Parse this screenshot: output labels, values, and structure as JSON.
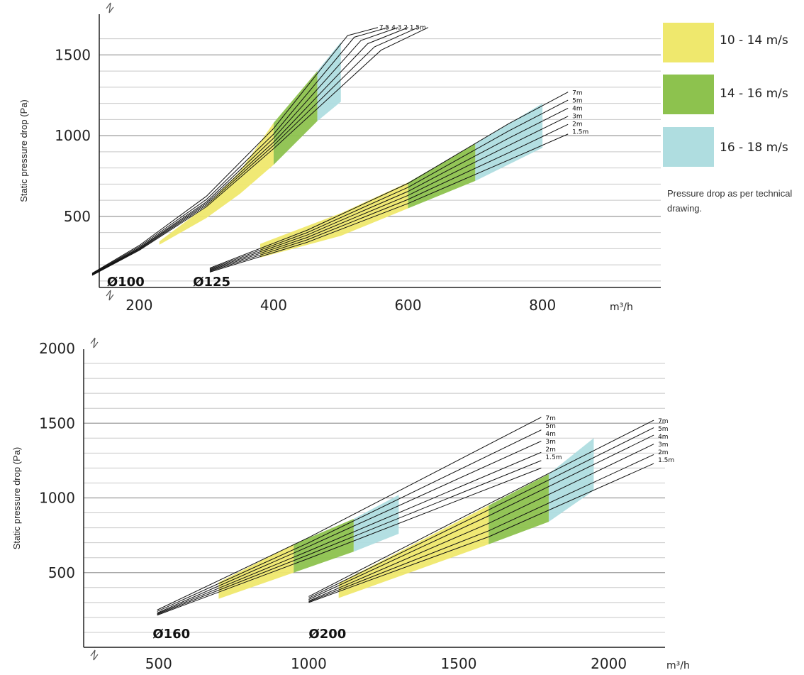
{
  "legend": {
    "items": [
      {
        "label": "10 - 14 m/s",
        "color": "#efe86d"
      },
      {
        "label": "14 - 16 m/s",
        "color": "#8dc24e"
      },
      {
        "label": "16 - 18 m/s",
        "color": "#afdde0"
      }
    ],
    "note": "Pressure drop as per technical drawing."
  },
  "chart_data": [
    {
      "type": "line",
      "ylabel": "Static pressure drop (Pa)",
      "xunit": "m³/h",
      "xlim": [
        80,
        850
      ],
      "ylim": [
        60,
        1660
      ],
      "xticks": [
        "200",
        "400",
        "600",
        "800"
      ],
      "yticks": [
        "500",
        "1000",
        "1500"
      ],
      "grid": true,
      "groups": [
        {
          "name": "Ø100",
          "label_x": 152,
          "label_y": 105,
          "length_labels": "7.5 4.3 2 1.5m",
          "bands": [
            {
              "speed": "10 - 14 m/s",
              "lower": [
                [
                  230,
                  325
                ],
                [
                  300,
                  490
                ],
                [
                  350,
                  640
                ],
                [
                  400,
                  820
                ]
              ],
              "upper": [
                [
                  230,
                  345
                ],
                [
                  300,
                  565
                ],
                [
                  350,
                  780
                ],
                [
                  400,
                  1080
                ]
              ]
            },
            {
              "speed": "14 - 16 m/s",
              "lower": [
                [
                  400,
                  820
                ],
                [
                  465,
                  1090
                ]
              ],
              "upper": [
                [
                  400,
                  1080
                ],
                [
                  465,
                  1400
                ]
              ]
            },
            {
              "speed": "16 - 18 m/s",
              "lower": [
                [
                  465,
                  1090
                ],
                [
                  500,
                  1210
                ]
              ],
              "upper": [
                [
                  465,
                  1400
                ],
                [
                  500,
                  1580
                ]
              ]
            }
          ],
          "series": [
            {
              "name": "1.5m",
              "values": [
                [
                  130,
                  135
                ],
                [
                  200,
                  290
                ],
                [
                  300,
                  560
                ],
                [
                  400,
                  920
                ],
                [
                  560,
                  1530
                ],
                [
                  630,
                  1670
                ]
              ]
            },
            {
              "name": "2m",
              "values": [
                [
                  130,
                  138
                ],
                [
                  200,
                  295
                ],
                [
                  300,
                  570
                ],
                [
                  400,
                  940
                ],
                [
                  550,
                  1550
                ],
                [
                  615,
                  1670
                ]
              ]
            },
            {
              "name": "3m",
              "values": [
                [
                  130,
                  140
                ],
                [
                  200,
                  300
                ],
                [
                  300,
                  580
                ],
                [
                  400,
                  960
                ],
                [
                  540,
                  1570
                ],
                [
                  600,
                  1670
                ]
              ]
            },
            {
              "name": "4m",
              "values": [
                [
                  130,
                  142
                ],
                [
                  200,
                  305
                ],
                [
                  300,
                  590
                ],
                [
                  400,
                  985
                ],
                [
                  530,
                  1590
                ],
                [
                  585,
                  1670
                ]
              ]
            },
            {
              "name": "5m",
              "values": [
                [
                  130,
                  145
                ],
                [
                  200,
                  312
                ],
                [
                  300,
                  605
                ],
                [
                  400,
                  1010
                ],
                [
                  520,
                  1610
                ],
                [
                  570,
                  1670
                ]
              ]
            },
            {
              "name": "7.5m",
              "values": [
                [
                  130,
                  148
                ],
                [
                  200,
                  320
                ],
                [
                  300,
                  625
                ],
                [
                  400,
                  1045
                ],
                [
                  510,
                  1620
                ],
                [
                  555,
                  1670
                ]
              ]
            }
          ]
        },
        {
          "name": "Ø125",
          "label_x": 280,
          "label_y": 105,
          "bands": [
            {
              "speed": "10 - 14 m/s",
              "lower": [
                [
                  380,
                  245
                ],
                [
                  500,
                  380
                ],
                [
                  600,
                  550
                ]
              ],
              "upper": [
                [
                  380,
                  330
                ],
                [
                  500,
                  520
                ],
                [
                  600,
                  710
                ]
              ]
            },
            {
              "speed": "14 - 16 m/s",
              "lower": [
                [
                  600,
                  550
                ],
                [
                  700,
                  720
                ]
              ],
              "upper": [
                [
                  600,
                  710
                ],
                [
                  700,
                  950
                ]
              ]
            },
            {
              "speed": "16 - 18 m/s",
              "lower": [
                [
                  700,
                  720
                ],
                [
                  800,
                  925
                ]
              ],
              "upper": [
                [
                  700,
                  950
                ],
                [
                  800,
                  1200
                ]
              ]
            }
          ],
          "series": [
            {
              "name": "1.5m",
              "values": [
                [
                  305,
                  155
                ],
                [
                  450,
                  340
                ],
                [
                  600,
                  580
                ],
                [
                  750,
                  850
                ],
                [
                  838,
                  1010
                ]
              ]
            },
            {
              "name": "2m",
              "values": [
                [
                  305,
                  160
                ],
                [
                  450,
                  355
                ],
                [
                  600,
                  605
                ],
                [
                  750,
                  895
                ],
                [
                  838,
                  1070
                ]
              ]
            },
            {
              "name": "3m",
              "values": [
                [
                  305,
                  165
                ],
                [
                  450,
                  370
                ],
                [
                  600,
                  630
                ],
                [
                  750,
                  940
                ],
                [
                  838,
                  1120
                ]
              ]
            },
            {
              "name": "4m",
              "values": [
                [
                  305,
                  170
                ],
                [
                  450,
                  385
                ],
                [
                  600,
                  655
                ],
                [
                  750,
                  985
                ],
                [
                  838,
                  1170
                ]
              ]
            },
            {
              "name": "5m",
              "values": [
                [
                  305,
                  175
                ],
                [
                  450,
                  400
                ],
                [
                  600,
                  680
                ],
                [
                  750,
                  1030
                ],
                [
                  838,
                  1220
                ]
              ]
            },
            {
              "name": "7m",
              "values": [
                [
                  305,
                  180
                ],
                [
                  450,
                  415
                ],
                [
                  600,
                  705
                ],
                [
                  750,
                  1075
                ],
                [
                  838,
                  1270
                ]
              ]
            }
          ]
        }
      ],
      "length_labels_right": [
        "7m",
        "5m",
        "4m",
        "3m",
        "2m",
        "1.5m"
      ]
    },
    {
      "type": "line",
      "ylabel": "Static pressure drop (Pa)",
      "xunit": "m³/h",
      "xlim": [
        250,
        2175
      ],
      "ylim": [
        0,
        2000
      ],
      "xticks": [
        "500",
        "1000",
        "1500",
        "2000"
      ],
      "yticks": [
        "500",
        "1000",
        "1500",
        "2000"
      ],
      "grid": true,
      "groups": [
        {
          "name": "Ø160",
          "label_x": 480,
          "label_y": 100,
          "bands": [
            {
              "speed": "10 - 14 m/s",
              "lower": [
                [
                  700,
                  325
                ],
                [
                  950,
                  500
                ]
              ],
              "upper": [
                [
                  700,
                  435
                ],
                [
                  950,
                  690
                ]
              ]
            },
            {
              "speed": "14 - 16 m/s",
              "lower": [
                [
                  950,
                  500
                ],
                [
                  1150,
                  640
                ]
              ],
              "upper": [
                [
                  950,
                  690
                ],
                [
                  1150,
                  860
                ]
              ]
            },
            {
              "speed": "16 - 18 m/s",
              "lower": [
                [
                  1150,
                  640
                ],
                [
                  1300,
                  760
                ]
              ],
              "upper": [
                [
                  1150,
                  860
                ],
                [
                  1300,
                  1020
                ]
              ]
            }
          ],
          "series": [
            {
              "name": "1.5m",
              "values": [
                [
                  495,
                  215
                ],
                [
                  1000,
                  595
                ],
                [
                  1775,
                  1200
                ]
              ]
            },
            {
              "name": "2m",
              "values": [
                [
                  495,
                  220
                ],
                [
                  1000,
                  620
                ],
                [
                  1775,
                  1250
                ]
              ]
            },
            {
              "name": "3m",
              "values": [
                [
                  495,
                  225
                ],
                [
                  1000,
                  645
                ],
                [
                  1775,
                  1305
                ]
              ]
            },
            {
              "name": "4m",
              "values": [
                [
                  495,
                  230
                ],
                [
                  1000,
                  675
                ],
                [
                  1775,
                  1380
                ]
              ]
            },
            {
              "name": "5m",
              "values": [
                [
                  495,
                  240
                ],
                [
                  1000,
                  700
                ],
                [
                  1775,
                  1455
                ]
              ]
            },
            {
              "name": "7m",
              "values": [
                [
                  495,
                  250
                ],
                [
                  1000,
                  735
                ],
                [
                  1775,
                  1540
                ]
              ]
            }
          ]
        },
        {
          "name": "Ø200",
          "label_x": 1000,
          "label_y": 100,
          "bands": [
            {
              "speed": "10 - 14 m/s",
              "lower": [
                [
                  1100,
                  330
                ],
                [
                  1600,
                  690
                ]
              ],
              "upper": [
                [
                  1100,
                  430
                ],
                [
                  1600,
                  950
                ]
              ]
            },
            {
              "speed": "14 - 16 m/s",
              "lower": [
                [
                  1600,
                  690
                ],
                [
                  1800,
                  840
                ]
              ],
              "upper": [
                [
                  1600,
                  950
                ],
                [
                  1800,
                  1160
                ]
              ]
            },
            {
              "speed": "16 - 18 m/s",
              "lower": [
                [
                  1800,
                  840
                ],
                [
                  1950,
                  1050
                ]
              ],
              "upper": [
                [
                  1800,
                  1160
                ],
                [
                  1950,
                  1400
                ]
              ]
            }
          ],
          "series": [
            {
              "name": "1.5m",
              "values": [
                [
                  1000,
                  300
                ],
                [
                  1600,
                  740
                ],
                [
                  2150,
                  1230
                ]
              ]
            },
            {
              "name": "2m",
              "values": [
                [
                  1000,
                  305
                ],
                [
                  1600,
                  780
                ],
                [
                  2150,
                  1290
                ]
              ]
            },
            {
              "name": "3m",
              "values": [
                [
                  1000,
                  310
                ],
                [
                  1600,
                  830
                ],
                [
                  2150,
                  1360
                ]
              ]
            },
            {
              "name": "4m",
              "values": [
                [
                  1000,
                  320
                ],
                [
                  1600,
                  880
                ],
                [
                  2150,
                  1420
                ]
              ]
            },
            {
              "name": "5m",
              "values": [
                [
                  1000,
                  330
                ],
                [
                  1600,
                  920
                ],
                [
                  2150,
                  1470
                ]
              ]
            },
            {
              "name": "7m",
              "values": [
                [
                  1000,
                  340
                ],
                [
                  1600,
                  960
                ],
                [
                  2150,
                  1520
                ]
              ]
            }
          ]
        }
      ],
      "length_labels_right": [
        "7m",
        "5m",
        "4m",
        "3m",
        "2m",
        "1.5m"
      ]
    }
  ]
}
